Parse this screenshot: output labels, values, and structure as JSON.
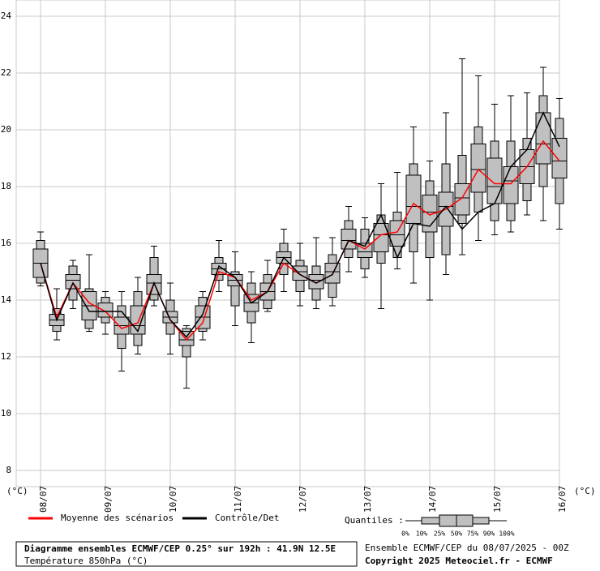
{
  "chart_data": {
    "type": "box",
    "y_label": "(°C)",
    "categories": [
      "08/07",
      null,
      null,
      null,
      "09/07",
      null,
      null,
      null,
      "10/07",
      null,
      null,
      null,
      "11/07",
      null,
      null,
      null,
      "12/07",
      null,
      null,
      null,
      "13/07",
      null,
      null,
      null,
      "14/07",
      null,
      null,
      null,
      "15/07",
      null,
      null,
      null,
      "16/07"
    ],
    "ylim": [
      7.43,
      24.57
    ],
    "yticks": [
      8,
      10,
      12,
      14,
      16,
      18,
      20,
      22,
      24
    ],
    "grid": true,
    "box_color": "#c0c0c0",
    "quantiles_label": "Quantiles :",
    "series": [
      {
        "name": "0%",
        "values": [
          14.5,
          12.6,
          13.7,
          12.9,
          12.8,
          11.5,
          12.1,
          13.8,
          12.1,
          10.9,
          12.6,
          14.3,
          13.1,
          12.5,
          13.6,
          14.3,
          13.8,
          13.7,
          13.8,
          15.0,
          14.8,
          13.7,
          15.1,
          14.6,
          14.0,
          14.9,
          15.6,
          16.1,
          16.3,
          16.4,
          17.0,
          16.8,
          16.5
        ]
      },
      {
        "name": "10%",
        "values": [
          14.6,
          12.9,
          14.0,
          13.0,
          13.2,
          12.3,
          12.4,
          14.0,
          12.8,
          12.0,
          12.9,
          14.7,
          13.8,
          13.2,
          13.7,
          14.9,
          14.3,
          14.0,
          14.1,
          15.5,
          15.1,
          15.3,
          15.5,
          15.7,
          15.5,
          15.6,
          16.7,
          17.1,
          16.8,
          16.8,
          17.5,
          18.0,
          17.4
        ]
      },
      {
        "name": "25%",
        "values": [
          14.8,
          13.1,
          14.4,
          13.3,
          13.4,
          12.8,
          12.8,
          14.2,
          13.2,
          12.4,
          13.0,
          14.9,
          14.5,
          13.6,
          14.0,
          15.3,
          14.7,
          14.4,
          14.6,
          15.8,
          15.5,
          15.7,
          15.9,
          16.7,
          16.4,
          16.6,
          17.0,
          17.8,
          17.4,
          17.4,
          18.1,
          18.8,
          18.3
        ]
      },
      {
        "name": "50%",
        "values": [
          15.3,
          13.3,
          14.7,
          13.8,
          13.6,
          13.1,
          13.1,
          14.6,
          13.4,
          12.6,
          13.4,
          15.1,
          14.7,
          13.9,
          14.3,
          15.5,
          15.0,
          14.7,
          15.0,
          16.1,
          15.7,
          16.3,
          16.3,
          17.3,
          17.1,
          17.3,
          17.6,
          18.6,
          18.0,
          18.2,
          18.7,
          19.5,
          18.9
        ]
      },
      {
        "name": "75%",
        "values": [
          15.8,
          13.5,
          14.9,
          14.3,
          13.9,
          13.4,
          13.8,
          14.9,
          13.6,
          12.9,
          13.8,
          15.3,
          14.9,
          14.2,
          14.6,
          15.7,
          15.2,
          14.9,
          15.3,
          16.5,
          16.0,
          16.7,
          16.8,
          18.4,
          17.7,
          17.8,
          18.1,
          19.5,
          19.0,
          18.7,
          19.3,
          20.6,
          19.7
        ]
      },
      {
        "name": "90%",
        "values": [
          16.1,
          13.7,
          15.2,
          14.4,
          14.1,
          13.8,
          14.3,
          15.5,
          14.0,
          13.0,
          14.1,
          15.5,
          15.0,
          14.6,
          14.9,
          16.0,
          15.4,
          15.2,
          15.6,
          16.8,
          16.5,
          17.0,
          17.1,
          18.8,
          18.2,
          18.8,
          19.1,
          20.1,
          19.6,
          19.6,
          19.7,
          21.2,
          20.4
        ]
      },
      {
        "name": "100%",
        "values": [
          16.4,
          14.4,
          15.4,
          15.6,
          14.3,
          14.3,
          14.8,
          15.9,
          14.6,
          13.1,
          14.3,
          16.1,
          15.7,
          15.0,
          15.4,
          16.5,
          16.0,
          16.2,
          16.2,
          17.3,
          16.9,
          18.1,
          18.5,
          20.1,
          18.9,
          20.6,
          22.5,
          21.9,
          20.9,
          21.2,
          21.3,
          22.2,
          21.1
        ]
      }
    ],
    "lines": [
      {
        "name": "Moyenne des scénarios",
        "color": "#ff0000",
        "values": [
          15.3,
          13.4,
          14.6,
          13.9,
          13.6,
          13.0,
          13.2,
          14.6,
          13.3,
          12.6,
          13.2,
          15.0,
          14.8,
          14.0,
          14.3,
          15.3,
          14.9,
          14.6,
          14.9,
          16.1,
          15.8,
          16.3,
          16.4,
          17.4,
          17.0,
          17.2,
          17.6,
          18.6,
          18.1,
          18.1,
          18.7,
          19.6,
          18.9
        ]
      },
      {
        "name": "Contrôle/Det",
        "color": "#000000",
        "values": [
          15.3,
          13.3,
          14.6,
          13.6,
          13.6,
          13.6,
          12.9,
          14.6,
          13.3,
          12.7,
          13.5,
          15.2,
          14.8,
          13.9,
          14.3,
          15.5,
          14.9,
          14.6,
          14.9,
          16.1,
          15.9,
          17.0,
          15.5,
          16.7,
          16.6,
          17.3,
          16.5,
          17.1,
          17.4,
          18.7,
          19.3,
          20.6,
          19.4
        ]
      }
    ],
    "footer": {
      "title": "Diagramme ensembles ECMWF/CEP 0.25° sur 192h : 41.9N 12.5E",
      "subtitle": "Température 850hPa (°C)",
      "run": "Ensemble ECMWF/CEP du 08/07/2025 - 00Z",
      "copyright": "Copyright 2025 Meteociel.fr - ECMWF"
    }
  }
}
